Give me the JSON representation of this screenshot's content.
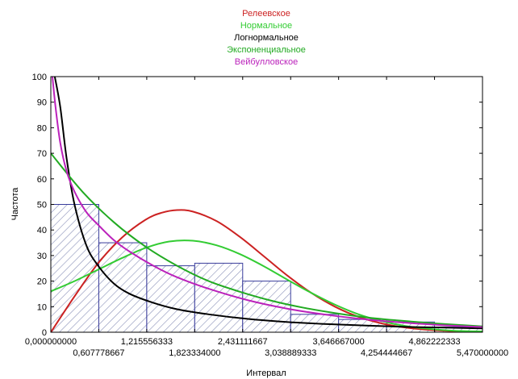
{
  "chart_data": {
    "type": "bar",
    "title": "",
    "xlabel": "Интервал",
    "ylabel": "Частота",
    "xlim": [
      0,
      5.47
    ],
    "ylim": [
      0,
      100
    ],
    "y_ticks": [
      0,
      10,
      20,
      30,
      40,
      50,
      60,
      70,
      80,
      90,
      100
    ],
    "x_ticks_row1": [
      "0,000000000",
      "1,215556333",
      "2,431111667",
      "3,646667000",
      "4,862222333"
    ],
    "x_ticks_row2": [
      "0,607778667",
      "1,823334000",
      "3,038889333",
      "4,254444667",
      "5,470000000"
    ],
    "x_tick_values": [
      0,
      0.607778667,
      1.215556333,
      1.823334,
      2.431111667,
      3.038889333,
      3.646667,
      4.254444667,
      4.862222333,
      5.47
    ],
    "histogram": {
      "bin_edges": [
        0,
        0.607778667,
        1.215556333,
        1.823334,
        2.431111667,
        3.038889333,
        3.646667,
        4.254444667,
        4.862222333,
        5.47
      ],
      "values": [
        50,
        35,
        26,
        27,
        20,
        7,
        5,
        4,
        2
      ],
      "fill_color": "#ffffff",
      "hatch_color": "#8890b8",
      "edge_color": "#3a3d9c"
    },
    "legend_placement": "top",
    "series": [
      {
        "name": "Релеевское",
        "color": "#cc2222",
        "x": [
          0,
          0.3,
          0.6,
          0.9,
          1.2,
          1.4,
          1.6,
          1.8,
          2.1,
          2.4,
          2.7,
          3.0,
          3.3,
          3.6,
          3.9,
          4.2,
          4.5,
          4.8,
          5.1,
          5.47
        ],
        "y": [
          0,
          14,
          27,
          37,
          44,
          46.7,
          47.8,
          47.2,
          43.5,
          37.2,
          29.7,
          22.1,
          15.4,
          10.0,
          6.0,
          3.4,
          1.8,
          0.9,
          0.4,
          0.2
        ]
      },
      {
        "name": "Нормальное",
        "color": "#33cc33",
        "x": [
          0,
          0.3,
          0.6,
          0.9,
          1.2,
          1.5,
          1.8,
          2.1,
          2.4,
          2.7,
          3.0,
          3.3,
          3.6,
          3.9,
          4.2,
          4.5,
          4.8,
          5.1,
          5.47
        ],
        "y": [
          16,
          20,
          24.5,
          29,
          33,
          35.5,
          35.8,
          34,
          30.5,
          25.8,
          20.5,
          15.4,
          10.8,
          7.0,
          4.3,
          2.4,
          1.3,
          0.6,
          0.3
        ]
      },
      {
        "name": "Логнормальное",
        "color": "#000000",
        "x": [
          0.05,
          0.12,
          0.2,
          0.3,
          0.45,
          0.6,
          0.8,
          1.0,
          1.3,
          1.6,
          2.0,
          2.5,
          3.0,
          3.5,
          4.0,
          4.5,
          5.0,
          5.47
        ],
        "y": [
          100,
          88,
          68,
          50,
          34,
          26,
          19,
          15,
          11.5,
          9,
          7,
          5.2,
          4.0,
          3.2,
          2.6,
          2.1,
          1.8,
          1.5
        ]
      },
      {
        "name": "Экспоненциальное",
        "color": "#22aa22",
        "x": [
          0,
          0.4,
          0.8,
          1.2,
          1.6,
          2.0,
          2.4,
          2.8,
          3.2,
          3.6,
          4.0,
          4.4,
          4.8,
          5.2,
          5.47
        ],
        "y": [
          70,
          55,
          43,
          33.5,
          26,
          20,
          15.8,
          12.3,
          9.6,
          7.5,
          5.8,
          4.6,
          3.6,
          2.8,
          2.3
        ]
      },
      {
        "name": "Вейбулловское",
        "color": "#bb22bb",
        "x": [
          0.02,
          0.06,
          0.12,
          0.2,
          0.3,
          0.45,
          0.6,
          0.8,
          1.0,
          1.3,
          1.6,
          2.0,
          2.5,
          3.0,
          3.5,
          4.0,
          4.5,
          5.0,
          5.47
        ],
        "y": [
          100,
          88,
          74,
          63,
          55,
          47,
          42,
          36,
          31.5,
          26,
          21.5,
          17,
          12.5,
          9.2,
          6.8,
          5.0,
          3.7,
          2.7,
          2.0
        ]
      }
    ]
  }
}
